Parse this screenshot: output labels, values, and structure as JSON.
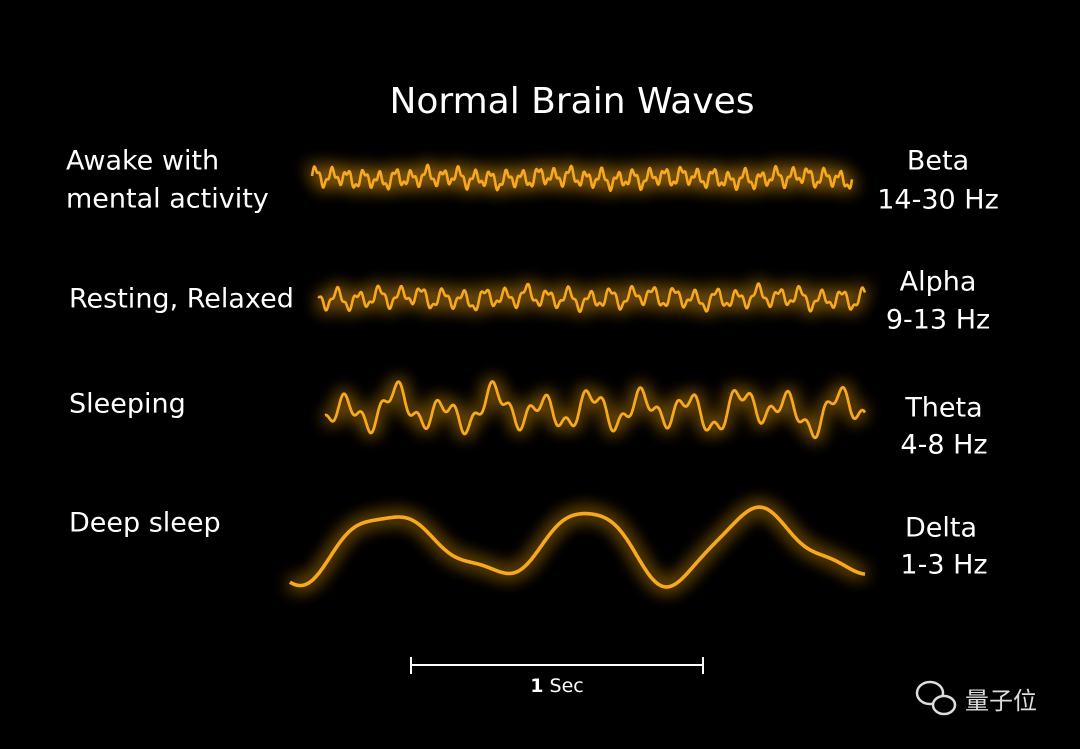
{
  "title": "Normal Brain Waves",
  "rows": [
    {
      "state": [
        "Awake with",
        "mental activity"
      ],
      "wave": "Beta",
      "frequency": "14-30 Hz"
    },
    {
      "state": [
        "Resting, Relaxed"
      ],
      "wave": "Alpha",
      "frequency": "9-13 Hz"
    },
    {
      "state": [
        "Sleeping"
      ],
      "wave": "Theta",
      "frequency": "4-8 Hz"
    },
    {
      "state": [
        "Deep sleep"
      ],
      "wave": "Delta",
      "frequency": "1-3 Hz"
    }
  ],
  "scale_bar": {
    "number": "1",
    "unit": "Sec"
  },
  "watermark": "量子位"
}
